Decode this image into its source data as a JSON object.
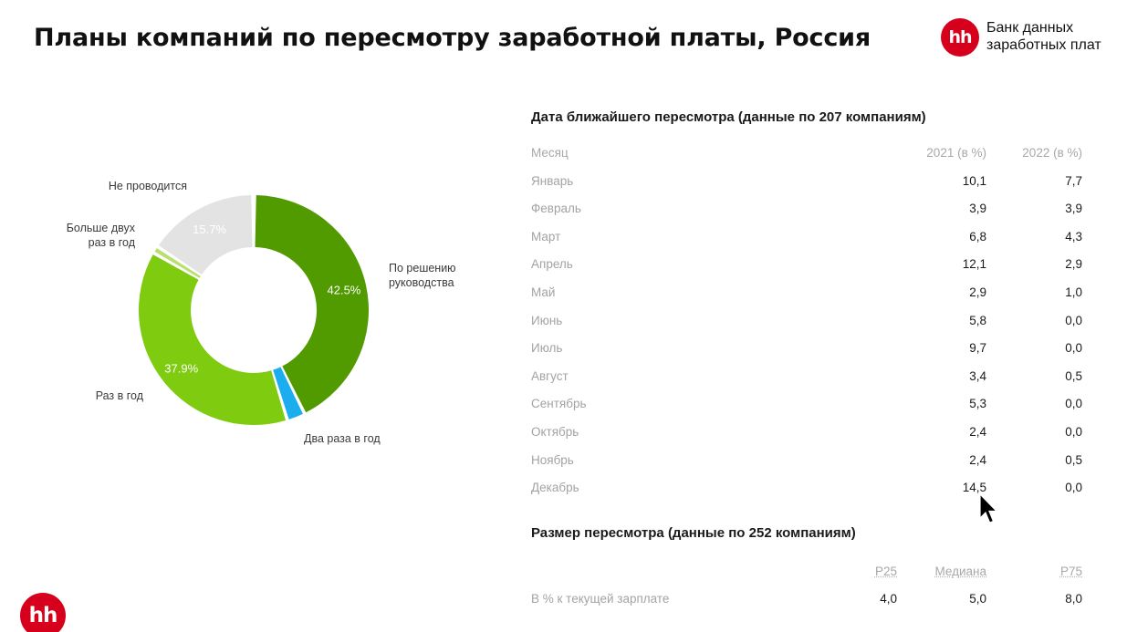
{
  "header": {
    "title": "Планы компаний по пересмотру заработной платы, Россия",
    "brand_logo": "hh",
    "brand_line1": "Банк данных",
    "brand_line2": "заработных плат"
  },
  "footer": {
    "logo": "hh"
  },
  "chart_data": [
    {
      "type": "pie",
      "variant": "donut",
      "slices": [
        {
          "label": "По решению руководства",
          "value": 42.5,
          "value_label": "42.5%",
          "color": "#519a00"
        },
        {
          "label": "Два раза в год",
          "value": 2.3,
          "value_label": "",
          "color": "#1cadee"
        },
        {
          "label": "Раз в год",
          "value": 37.9,
          "value_label": "37.9%",
          "color": "#7ecb10"
        },
        {
          "label": "Больше двух раз в год",
          "value": 0.8,
          "value_label": "",
          "color": "#b7e06c"
        },
        {
          "label": "Не проводится",
          "value": 15.7,
          "value_label": "15.7%",
          "color": "#e3e3e3"
        }
      ],
      "legend": "none"
    },
    {
      "type": "table",
      "title": "Дата ближайшего пересмотра (данные по 207 компаниям)",
      "columns": [
        "Месяц",
        "2021 (в %)",
        "2022 (в %)"
      ],
      "rows": [
        [
          "Январь",
          "10,1",
          "7,7"
        ],
        [
          "Февраль",
          "3,9",
          "3,9"
        ],
        [
          "Март",
          "6,8",
          "4,3"
        ],
        [
          "Апрель",
          "12,1",
          "2,9"
        ],
        [
          "Май",
          "2,9",
          "1,0"
        ],
        [
          "Июнь",
          "5,8",
          "0,0"
        ],
        [
          "Июль",
          "9,7",
          "0,0"
        ],
        [
          "Август",
          "3,4",
          "0,5"
        ],
        [
          "Сентябрь",
          "5,3",
          "0,0"
        ],
        [
          "Октябрь",
          "2,4",
          "0,0"
        ],
        [
          "Ноябрь",
          "2,4",
          "0,5"
        ],
        [
          "Декабрь",
          "14,5",
          "0,0"
        ]
      ]
    },
    {
      "type": "table",
      "title": "Размер пересмотра (данные по 252 компаниям)",
      "columns": [
        "",
        "P25",
        "Медиана",
        "P75"
      ],
      "rows": [
        [
          "В % к текущей зарплате",
          "4,0",
          "5,0",
          "8,0"
        ]
      ]
    }
  ]
}
